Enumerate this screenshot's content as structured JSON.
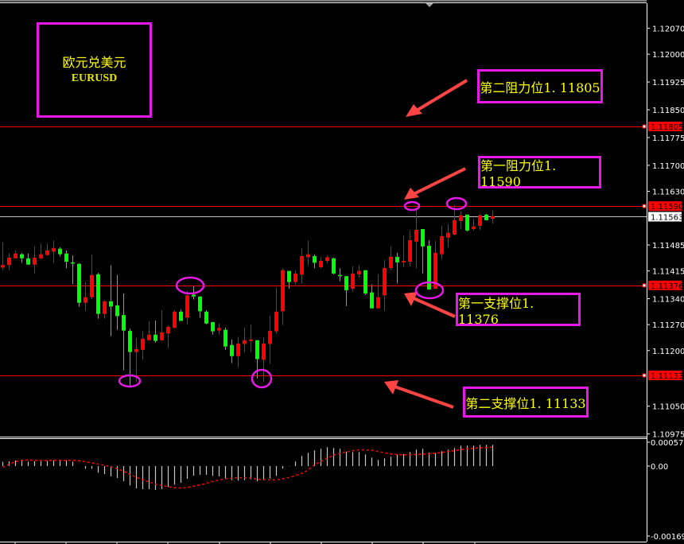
{
  "symbol": {
    "name_cn": "欧元兑美元",
    "name_en": "EURUSD"
  },
  "annotations": [
    {
      "text": "第二阻力位1. 11805",
      "level": 1.11805
    },
    {
      "text": "第一阻力位1. 11590",
      "level": 1.1159
    },
    {
      "text": "第一支撑位1. 11376",
      "level": 1.11376
    },
    {
      "text": "第二支撑位1. 11133",
      "level": 1.11133
    }
  ],
  "colors": {
    "bull": "#ff0000",
    "bear": "#00ff00",
    "level_line": "#ff0000",
    "box": "#e619e6",
    "label_text": "#ffff00",
    "arrow": "#ff4444",
    "price_line": "#c0c0c0"
  },
  "chart_data": [
    {
      "type": "candlestick",
      "symbol": "EURUSD",
      "price_axis_ticks": [
        "1.12070",
        "1.12000",
        "1.11925",
        "1.11850",
        "1.11775",
        "1.11700",
        "1.11630",
        "1.11485",
        "1.11415",
        "1.11340",
        "1.11270",
        "1.11200",
        "1.11050",
        "1.10975"
      ],
      "ylim": [
        1.10975,
        1.1211
      ],
      "level_tags": [
        "1.11805",
        "1.11590",
        "1.11376",
        "1.11133"
      ],
      "current_price": "1.11563",
      "candle_fields": [
        "open",
        "high",
        "low",
        "close"
      ],
      "candles": [
        [
          1.11424,
          1.11492,
          1.11417,
          1.11431
        ],
        [
          1.11431,
          1.11463,
          1.11417,
          1.11451
        ],
        [
          1.11449,
          1.1147,
          1.11449,
          1.11462
        ],
        [
          1.1146,
          1.11463,
          1.11437,
          1.11449
        ],
        [
          1.11449,
          1.11462,
          1.11432,
          1.11432
        ],
        [
          1.11432,
          1.11481,
          1.11408,
          1.11451
        ],
        [
          1.11449,
          1.11488,
          1.11447,
          1.1146
        ],
        [
          1.11458,
          1.11488,
          1.11456,
          1.1147
        ],
        [
          1.11467,
          1.11497,
          1.11437,
          1.11477
        ],
        [
          1.11475,
          1.11479,
          1.11454,
          1.1146
        ],
        [
          1.11462,
          1.1147,
          1.11422,
          1.1144
        ],
        [
          1.11438,
          1.11457,
          1.11379,
          1.11437
        ],
        [
          1.11434,
          1.11436,
          1.11318,
          1.11329
        ],
        [
          1.11329,
          1.11384,
          1.11308,
          1.11344
        ],
        [
          1.11344,
          1.1146,
          1.11339,
          1.11404
        ],
        [
          1.11406,
          1.1141,
          1.11286,
          1.11299
        ],
        [
          1.11299,
          1.11336,
          1.11286,
          1.11333
        ],
        [
          1.11333,
          1.1143,
          1.11239,
          1.11319
        ],
        [
          1.11322,
          1.11404,
          1.11256,
          1.11293
        ],
        [
          1.11296,
          1.11354,
          1.11147,
          1.11254
        ],
        [
          1.11253,
          1.11259,
          1.11105,
          1.11196
        ],
        [
          1.11196,
          1.11234,
          1.11116,
          1.11204
        ],
        [
          1.11202,
          1.11252,
          1.11175,
          1.11232
        ],
        [
          1.11228,
          1.11279,
          1.11228,
          1.11243
        ],
        [
          1.11243,
          1.11281,
          1.11221,
          1.11226
        ],
        [
          1.11228,
          1.11309,
          1.11226,
          1.11249
        ],
        [
          1.11246,
          1.11268,
          1.11207,
          1.11264
        ],
        [
          1.11261,
          1.11309,
          1.11261,
          1.11305
        ],
        [
          1.11305,
          1.11311,
          1.1128,
          1.1128
        ],
        [
          1.11289,
          1.11361,
          1.11271,
          1.11349
        ],
        [
          1.11351,
          1.11374,
          1.11338,
          1.11346
        ],
        [
          1.11346,
          1.11346,
          1.11289,
          1.11306
        ],
        [
          1.11305,
          1.11309,
          1.11271,
          1.11273
        ],
        [
          1.11277,
          1.11277,
          1.11243,
          1.11252
        ],
        [
          1.11254,
          1.11273,
          1.11243,
          1.11261
        ],
        [
          1.11256,
          1.11262,
          1.11202,
          1.11211
        ],
        [
          1.11215,
          1.1123,
          1.11166,
          1.11185
        ],
        [
          1.11185,
          1.11237,
          1.11155,
          1.11219
        ],
        [
          1.11218,
          1.11262,
          1.11195,
          1.11228
        ],
        [
          1.11226,
          1.11271,
          1.11196,
          1.1123
        ],
        [
          1.11228,
          1.11228,
          1.11125,
          1.11177
        ],
        [
          1.11175,
          1.11235,
          1.11116,
          1.11219
        ],
        [
          1.11218,
          1.11294,
          1.11164,
          1.11253
        ],
        [
          1.11252,
          1.11369,
          1.11245,
          1.11305
        ],
        [
          1.11306,
          1.11422,
          1.11269,
          1.11417
        ],
        [
          1.11415,
          1.11415,
          1.11367,
          1.11385
        ],
        [
          1.11385,
          1.11417,
          1.11377,
          1.11408
        ],
        [
          1.11405,
          1.11477,
          1.11381,
          1.11455
        ],
        [
          1.11452,
          1.11497,
          1.1143,
          1.1146
        ],
        [
          1.11455,
          1.1146,
          1.11422,
          1.11437
        ],
        [
          1.11425,
          1.11453,
          1.11422,
          1.11442
        ],
        [
          1.11442,
          1.11457,
          1.11436,
          1.11452
        ],
        [
          1.11449,
          1.11451,
          1.11406,
          1.11408
        ],
        [
          1.11404,
          1.11422,
          1.11387,
          1.11401
        ],
        [
          1.11401,
          1.11401,
          1.1132,
          1.11363
        ],
        [
          1.11367,
          1.11427,
          1.11359,
          1.11408
        ],
        [
          1.11406,
          1.1143,
          1.11397,
          1.11415
        ],
        [
          1.11417,
          1.11417,
          1.11351,
          1.11354
        ],
        [
          1.11357,
          1.11379,
          1.11314,
          1.11314
        ],
        [
          1.11314,
          1.11406,
          1.11314,
          1.11344
        ],
        [
          1.11349,
          1.11444,
          1.11308,
          1.11423
        ],
        [
          1.11423,
          1.11481,
          1.11417,
          1.11453
        ],
        [
          1.11453,
          1.11464,
          1.11381,
          1.11438
        ],
        [
          1.11438,
          1.11511,
          1.11425,
          1.11442
        ],
        [
          1.1144,
          1.11524,
          1.11427,
          1.11498
        ],
        [
          1.11494,
          1.1158,
          1.11422,
          1.11526
        ],
        [
          1.11528,
          1.11528,
          1.11408,
          1.11481
        ],
        [
          1.11483,
          1.11498,
          1.11365,
          1.11365
        ],
        [
          1.11367,
          1.11496,
          1.11367,
          1.11464
        ],
        [
          1.1146,
          1.11537,
          1.11447,
          1.11509
        ],
        [
          1.11505,
          1.11541,
          1.11479,
          1.11518
        ],
        [
          1.11513,
          1.11593,
          1.11511,
          1.11552
        ],
        [
          1.1155,
          1.11576,
          1.11528,
          1.11565
        ],
        [
          1.11567,
          1.11567,
          1.11522,
          1.11524
        ],
        [
          1.11528,
          1.11556,
          1.11524,
          1.11535
        ],
        [
          1.11537,
          1.11569,
          1.11526,
          1.11565
        ],
        [
          1.11567,
          1.11569,
          1.11552,
          1.11552
        ],
        [
          1.11556,
          1.11578,
          1.11543,
          1.11563
        ]
      ]
    },
    {
      "type": "bar+line",
      "axis_labels": [
        "0.000577",
        "0.00",
        "-0.001694"
      ],
      "ylim": [
        -0.001694,
        0.000577
      ],
      "histogram": [
        0.000103,
        0.000116,
        0.000135,
        0.000128,
        0.000109,
        0.000116,
        0.000116,
        0.000128,
        0.000135,
        0.000135,
        0.000135,
        0.000109,
        0.0,
        -6.4e-05,
        -6.4e-05,
        -0.000161,
        -0.000193,
        -0.00025,
        -0.000289,
        -0.000366,
        -0.000469,
        -0.000539,
        -0.000559,
        -0.000559,
        -0.000578,
        -0.000559,
        -0.000507,
        -0.000449,
        -0.000404,
        -0.000308,
        -0.000231,
        -0.000212,
        -0.000212,
        -0.000238,
        -0.00025,
        -0.000302,
        -0.00034,
        -0.000353,
        -0.00034,
        -0.000321,
        -0.000366,
        -0.000347,
        -0.000302,
        -0.000238,
        -5.8e-05,
        -6e-06,
        0.000109,
        0.000244,
        0.000321,
        0.000379,
        0.000417,
        0.000456,
        0.000437,
        0.000417,
        0.000353,
        0.00034,
        0.00034,
        0.000282,
        0.000205,
        0.000148,
        0.000186,
        0.000225,
        0.000276,
        0.000289,
        0.00034,
        0.000398,
        0.000417,
        0.000327,
        0.000315,
        0.00036,
        0.000398,
        0.000437,
        0.000494,
        0.000494,
        0.000494,
        0.000514,
        0.000514,
        0.000514
      ],
      "signal": [
        -2.6e-05,
        4.5e-05,
        0.000109,
        0.000141,
        0.000148,
        0.000141,
        0.000135,
        0.000135,
        0.000141,
        0.000141,
        0.000141,
        0.000141,
        0.000128,
        0.000103,
        7.7e-05,
        4.5e-05,
        1.9e-05,
        -1.9e-05,
        -6.4e-05,
        -0.000128,
        -0.000205,
        -0.00027,
        -0.000334,
        -0.000385,
        -0.000437,
        -0.000469,
        -0.000501,
        -0.000526,
        -0.000533,
        -0.00052,
        -0.000488,
        -0.000456,
        -0.000417,
        -0.000372,
        -0.00034,
        -0.000308,
        -0.000295,
        -0.000282,
        -0.000282,
        -0.000289,
        -0.000321,
        -0.000321,
        -0.000334,
        -0.000334,
        -0.000308,
        -0.000276,
        -0.000231,
        -0.000173,
        -9.6e-05,
        3.2e-05,
        0.000116,
        0.000186,
        0.000263,
        0.000308,
        0.00034,
        0.000372,
        0.000392,
        0.000392,
        0.000379,
        0.000353,
        0.000321,
        0.000295,
        0.000276,
        0.000276,
        0.000276,
        0.000282,
        0.000289,
        0.000295,
        0.000308,
        0.000327,
        0.000353,
        0.000372,
        0.000398,
        0.000417,
        0.00043,
        0.000443,
        0.000449,
        0.000456
      ]
    }
  ]
}
